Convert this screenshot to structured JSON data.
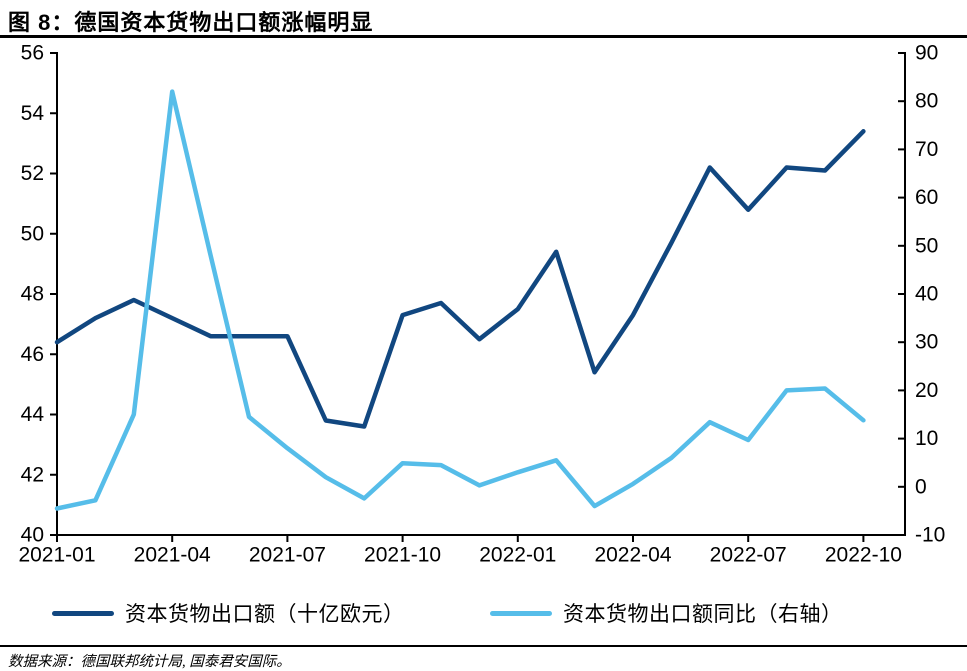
{
  "page": {
    "title": "图 8：德国资本货物出口额涨幅明显",
    "source_note": "数据来源：德国联邦统计局, 国泰君安国际。"
  },
  "colors": {
    "primary_line": "#114780",
    "secondary_line": "#56BDE9",
    "axis": "#000000",
    "text": "#000000",
    "background": "#FFFFFF"
  },
  "legend": {
    "items": [
      {
        "label": "资本货物出口额（十亿欧元）",
        "color": "#114780"
      },
      {
        "label": "资本货物出口额同比（右轴）",
        "color": "#56BDE9"
      }
    ]
  },
  "chart_data": {
    "type": "line",
    "title": "图 8：德国资本货物出口额涨幅明显",
    "grid": false,
    "legend_position": "bottom",
    "x": [
      "2021-01",
      "2021-02",
      "2021-03",
      "2021-04",
      "2021-05",
      "2021-06",
      "2021-07",
      "2021-08",
      "2021-09",
      "2021-10",
      "2021-11",
      "2021-12",
      "2022-01",
      "2022-02",
      "2022-03",
      "2022-04",
      "2022-05",
      "2022-06",
      "2022-07",
      "2022-08",
      "2022-09",
      "2022-10"
    ],
    "x_tick_labels": [
      "2021-01",
      "2021-04",
      "2021-07",
      "2021-10",
      "2022-01",
      "2022-04",
      "2022-07",
      "2022-10"
    ],
    "series": [
      {
        "name": "资本货物出口额（十亿欧元）",
        "axis": "left",
        "color": "#114780",
        "values": [
          46.4,
          47.2,
          47.8,
          47.2,
          46.6,
          46.6,
          46.6,
          43.8,
          43.6,
          47.3,
          47.7,
          46.5,
          47.5,
          49.4,
          45.4,
          47.3,
          49.7,
          52.2,
          50.8,
          52.2,
          52.1,
          53.4
        ]
      },
      {
        "name": "资本货物出口额同比（右轴）",
        "axis": "right",
        "color": "#56BDE9",
        "values": [
          -4.5,
          -2.8,
          15.0,
          82.0,
          48.0,
          14.5,
          8.0,
          2.0,
          -2.4,
          4.9,
          4.5,
          0.3,
          3.0,
          5.5,
          -4.0,
          0.6,
          6.0,
          13.4,
          9.7,
          20.0,
          20.4,
          13.8
        ]
      }
    ],
    "left_axis": {
      "min": 40,
      "max": 56,
      "tick_step": 2,
      "tick_labels": [
        "56",
        "54",
        "52",
        "50",
        "48",
        "46",
        "44",
        "42",
        "40"
      ]
    },
    "right_axis": {
      "min": -10,
      "max": 90,
      "tick_step": 10,
      "tick_labels": [
        "90",
        "80",
        "70",
        "60",
        "50",
        "40",
        "30",
        "20",
        "10",
        "0",
        "-10"
      ]
    }
  }
}
